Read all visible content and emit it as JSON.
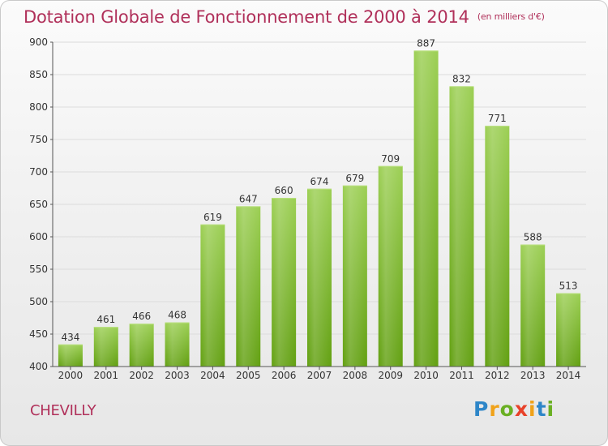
{
  "header": {
    "title": "Dotation Globale de Fonctionnement de 2000 à 2014",
    "subtitle": "(en milliers d'€)"
  },
  "footer": {
    "city": "CHEVILLY",
    "logo_text": "Proxiti"
  },
  "colors": {
    "title": "#b0305a",
    "bar_top": "#9ccf54",
    "bar_bottom": "#62a011"
  },
  "chart_data": {
    "type": "bar",
    "title": "Dotation Globale de Fonctionnement de 2000 à 2014",
    "subtitle": "(en milliers d'€)",
    "xlabel": "",
    "ylabel": "",
    "categories": [
      "2000",
      "2001",
      "2002",
      "2003",
      "2004",
      "2005",
      "2006",
      "2007",
      "2008",
      "2009",
      "2010",
      "2011",
      "2012",
      "2013",
      "2014"
    ],
    "values": [
      434,
      461,
      466,
      468,
      619,
      647,
      660,
      674,
      679,
      709,
      887,
      832,
      771,
      588,
      513
    ],
    "ylim": [
      400,
      900
    ],
    "yticks": [
      400,
      450,
      500,
      550,
      600,
      650,
      700,
      750,
      800,
      850,
      900
    ],
    "grid": true,
    "legend": "none"
  }
}
